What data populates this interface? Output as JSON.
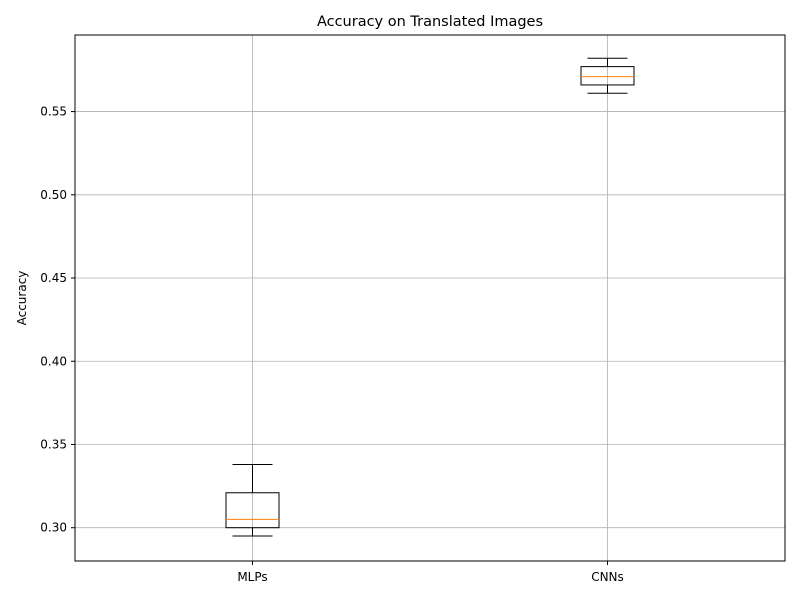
{
  "chart_data": {
    "type": "boxplot",
    "title": "Accuracy on Translated Images",
    "xlabel": "",
    "ylabel": "Accuracy",
    "ylim": [
      0.28,
      0.596
    ],
    "yticks": [
      0.3,
      0.35,
      0.4,
      0.45,
      0.5,
      0.55
    ],
    "ytick_labels": [
      "0.30",
      "0.35",
      "0.40",
      "0.45",
      "0.50",
      "0.55"
    ],
    "grid": true,
    "categories": [
      "MLPs",
      "CNNs"
    ],
    "boxes": [
      {
        "label": "MLPs",
        "whisker_low": 0.295,
        "q1": 0.3,
        "median": 0.305,
        "q3": 0.321,
        "whisker_high": 0.338
      },
      {
        "label": "CNNs",
        "whisker_low": 0.561,
        "q1": 0.566,
        "median": 0.571,
        "q3": 0.577,
        "whisker_high": 0.582
      }
    ],
    "colors": {
      "box": "#000000",
      "median": "#ff7f0e",
      "grid": "#b0b0b0"
    }
  }
}
